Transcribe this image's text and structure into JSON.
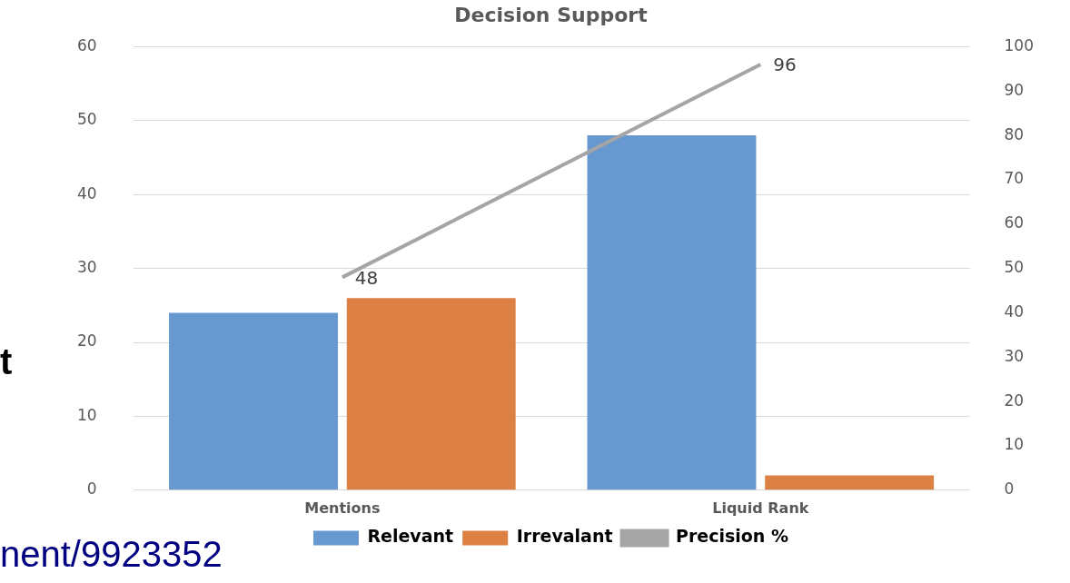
{
  "chart_data": {
    "type": "bar",
    "title": "Decision Support",
    "categories": [
      "Mentions",
      "Liquid Rank"
    ],
    "series": [
      {
        "name": "Relevant",
        "color": "#6798d0",
        "values": [
          24,
          48
        ]
      },
      {
        "name": "Irrevalant",
        "color": "#dd8043",
        "values": [
          26,
          2
        ]
      },
      {
        "name": "Precision %",
        "type": "line",
        "axis": "y2",
        "color": "#a5a5a5",
        "values": [
          48,
          96
        ],
        "value_labels": [
          "48",
          "96"
        ]
      }
    ],
    "ylim": [
      0,
      60
    ],
    "yticks": [
      0,
      10,
      20,
      30,
      40,
      50,
      60
    ],
    "y2lim": [
      0,
      100
    ],
    "y2ticks": [
      0,
      10,
      20,
      30,
      40,
      50,
      60,
      70,
      80,
      90,
      100
    ],
    "grid": "y",
    "legend": "bottom",
    "marker": "none",
    "annotations": [
      "t",
      "nent/9923352"
    ]
  }
}
